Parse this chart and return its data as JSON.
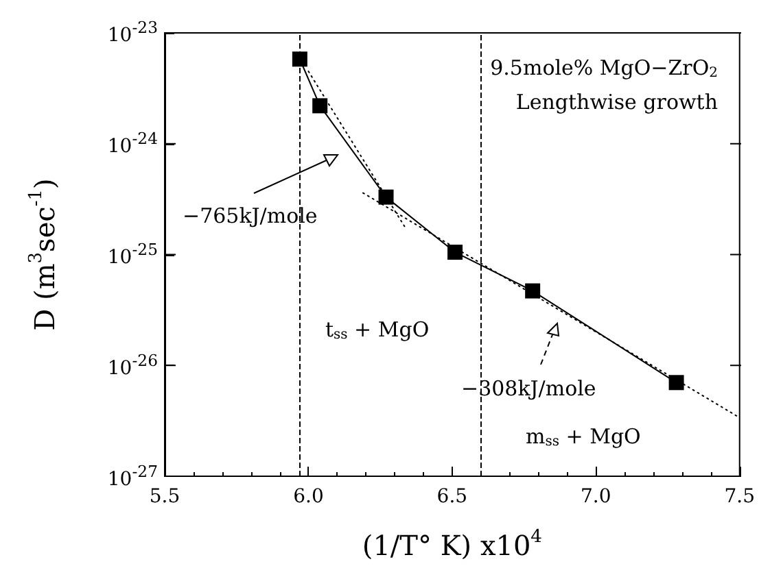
{
  "chart_data": {
    "type": "line",
    "xlabel": "(1/T° K) x10$^{4}$",
    "ylabel": "D (m$^{3}$sec$^{-1}$)",
    "log": "y",
    "grid": false,
    "xlim": [
      5.5,
      7.5
    ],
    "xticks": [
      5.5,
      {
        "value": 6,
        "label": "6.0"
      },
      6.5,
      {
        "value": 7,
        "label": "7.0"
      },
      7.5
    ],
    "ylim": [
      1e-27,
      1e-23
    ],
    "yticks": [
      {
        "value": 1e-27,
        "label": "10$^{-27}$"
      },
      {
        "value": 1e-26,
        "label": "10$^{-26}$"
      },
      {
        "value": 1e-25,
        "label": "10$^{-25}$"
      },
      {
        "value": 1e-24,
        "label": "10$^{-24}$"
      },
      {
        "value": 1e-23,
        "label": "10$^{-23}$"
      }
    ],
    "series": [
      {
        "color": "#000000",
        "marker": "square",
        "line_style": "solid",
        "x": [
          5.97,
          6.04,
          6.27,
          6.51,
          6.78,
          7.28
        ],
        "values": [
          5.8e-24,
          2.2e-24,
          3.3e-25,
          1.05e-25,
          4.7e-26,
          7e-27
        ]
      },
      {
        "color": "#000000",
        "marker": "none",
        "line_style": "dotted",
        "x": [
          6.0,
          6.34
        ],
        "values": [
          4.5e-24,
          1.7e-25
        ]
      },
      {
        "color": "#000000",
        "marker": "none",
        "line_style": "dotted",
        "x": [
          6.19,
          7.49
        ],
        "values": [
          3.6e-25,
          3.5e-27
        ]
      }
    ],
    "ref_lines": [
      {
        "axis": "x",
        "value": 5.97,
        "line_style": "dashed",
        "color": "#000000"
      },
      {
        "axis": "x",
        "value": 6.6,
        "line_style": "dashed",
        "color": "#000000"
      }
    ],
    "annotations": [
      "9.5mole% MgO−ZrO$_{2}$",
      "Lengthwise growth",
      "−765kJ/mole",
      "t$_{ss}$ + MgO",
      "−308kJ/mole",
      "m$_{ss}$ + MgO"
    ]
  }
}
